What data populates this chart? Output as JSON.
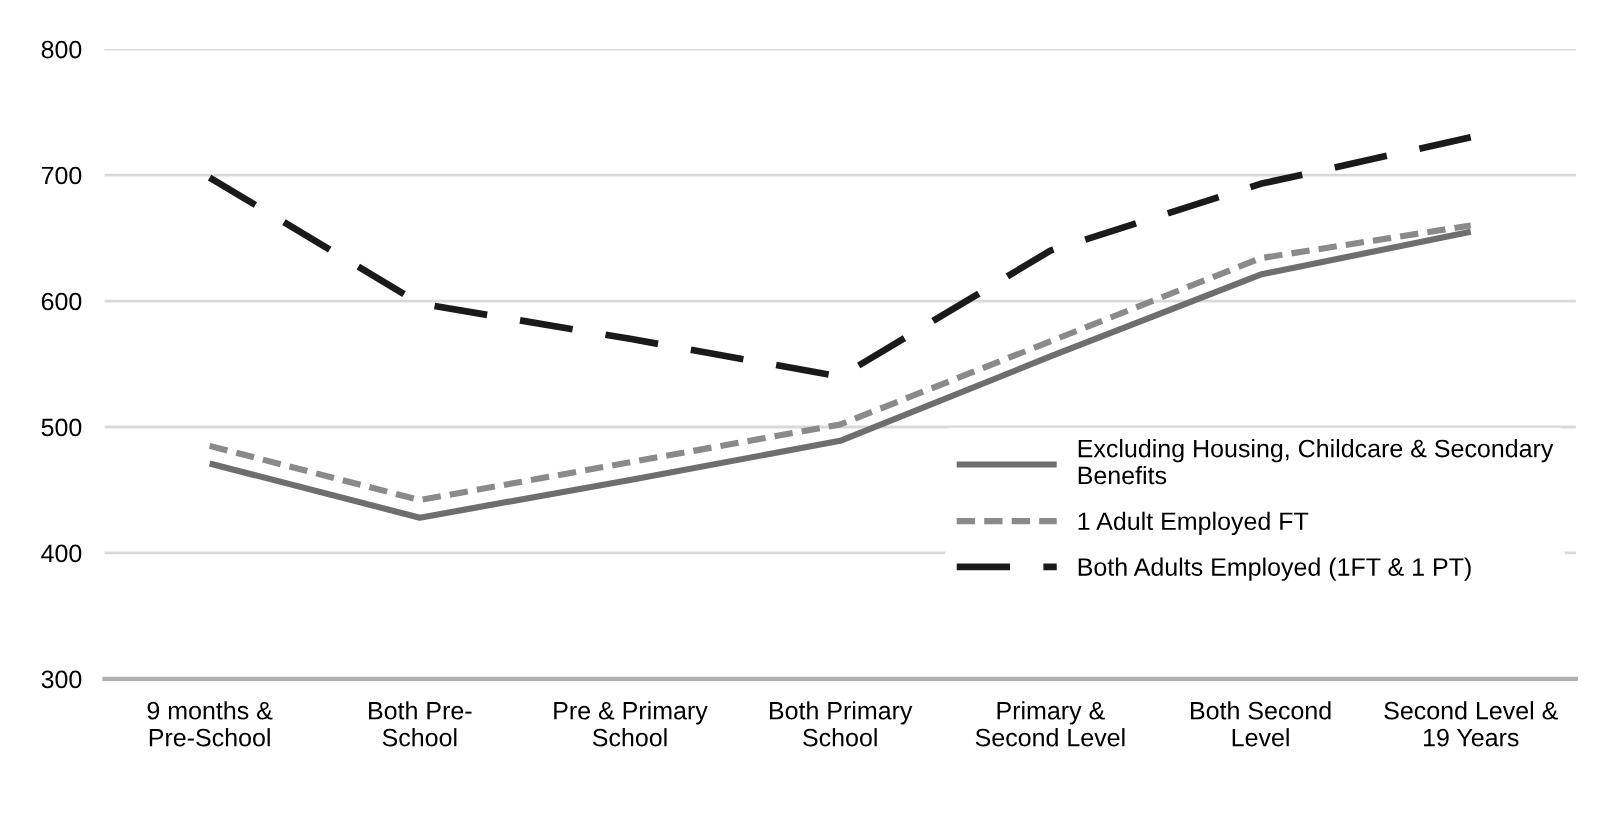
{
  "chart_data": {
    "type": "line",
    "categories": [
      "9 months &\nPre-School",
      "Both Pre-\nSchool",
      "Pre & Primary\nSchool",
      "Both Primary\nSchool",
      "Primary &\nSecond Level",
      "Both Second\nLevel",
      "Second Level &\n19 Years"
    ],
    "series": [
      {
        "name": "Excluding Housing, Childcare & Secondary\nBenefits",
        "color": "#6e6e6e",
        "line_style": "solid",
        "values": [
          471,
          428,
          458,
          489,
          556,
          621,
          655
        ]
      },
      {
        "name": "1 Adult Employed FT",
        "color": "#8a8a8a",
        "line_style": "dotted",
        "values": [
          485,
          442,
          472,
          502,
          568,
          634,
          660
        ]
      },
      {
        "name": "Both Adults Employed (1FT & 1 PT)",
        "color": "#1a1a1a",
        "line_style": "dashed",
        "values": [
          698,
          598,
          570,
          540,
          640,
          693,
          730
        ]
      }
    ],
    "ylim": [
      300,
      800
    ],
    "yticks": [
      300,
      400,
      500,
      600,
      700,
      800
    ],
    "grid": "y",
    "legend": "bottom right"
  }
}
